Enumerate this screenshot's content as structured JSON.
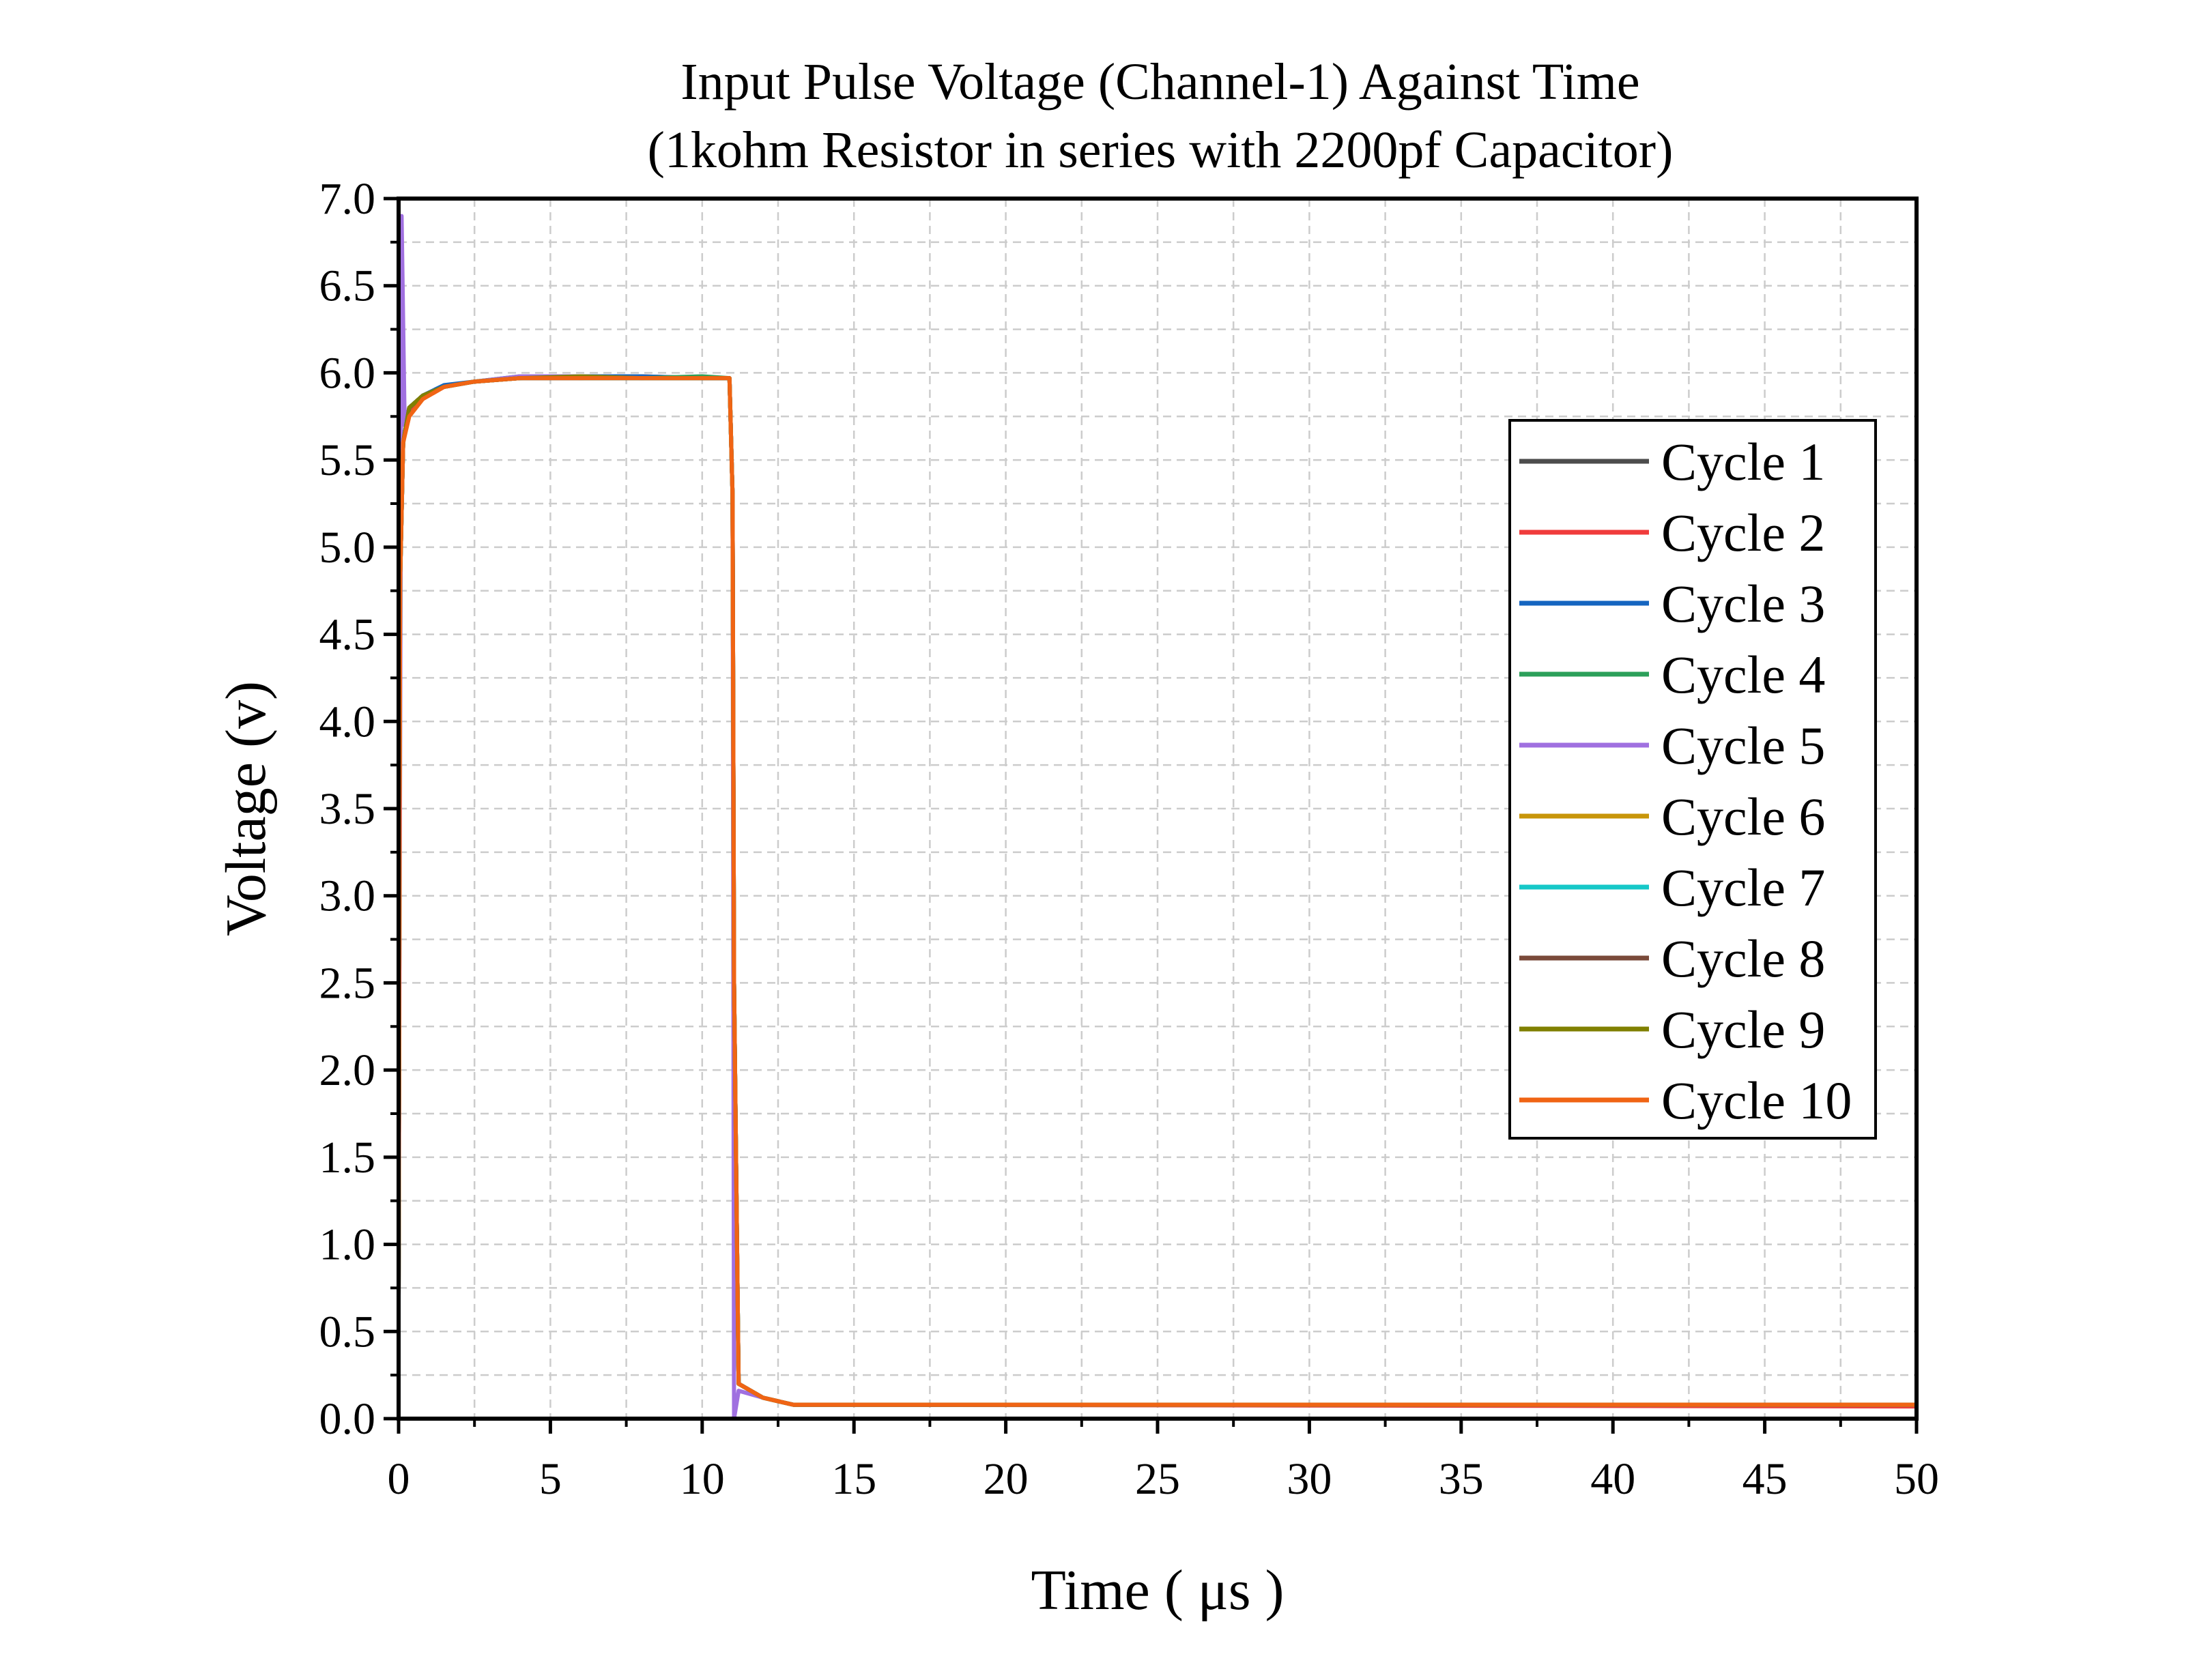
{
  "chart_data": {
    "type": "line",
    "title": "Input Pulse Voltage (Channel-1) Against Time",
    "subtitle": "(1kohm Resistor in series with 2200pf Capacitor)",
    "xlabel": "Time ( μs )",
    "ylabel": "Voltage (v)",
    "xlim": [
      0,
      50
    ],
    "ylim": [
      0,
      7
    ],
    "x_ticks": [
      "0",
      "5",
      "10",
      "15",
      "20",
      "25",
      "30",
      "35",
      "40",
      "45",
      "50"
    ],
    "y_ticks": [
      "0.0",
      "0.5",
      "1.0",
      "1.5",
      "2.0",
      "2.5",
      "3.0",
      "3.5",
      "4.0",
      "4.5",
      "5.0",
      "5.5",
      "6.0",
      "6.5",
      "7.0"
    ],
    "grid": true,
    "legend_position": "right",
    "series": [
      {
        "name": "Cycle 1",
        "color": "#4d4d4d",
        "x": [
          0,
          0.05,
          0.15,
          0.35,
          0.8,
          1.5,
          2.5,
          4,
          6,
          8,
          10,
          10.9,
          11.0,
          11.05,
          11.2,
          12,
          13,
          50
        ],
        "y": [
          0.7,
          4.8,
          5.6,
          5.8,
          5.87,
          5.92,
          5.95,
          5.97,
          5.97,
          5.97,
          5.97,
          5.97,
          5.3,
          2.5,
          0.2,
          0.12,
          0.08,
          0.08
        ]
      },
      {
        "name": "Cycle 2",
        "color": "#f03c3c",
        "x": [
          0,
          0.05,
          0.15,
          0.35,
          0.8,
          1.5,
          2.5,
          4,
          6,
          8,
          10,
          10.9,
          11.0,
          11.05,
          11.2,
          12,
          13,
          50
        ],
        "y": [
          0.7,
          4.8,
          5.6,
          5.78,
          5.85,
          5.92,
          5.95,
          5.97,
          5.97,
          5.98,
          5.97,
          5.97,
          5.3,
          2.5,
          0.2,
          0.12,
          0.08,
          0.07
        ]
      },
      {
        "name": "Cycle 3",
        "color": "#1565c0",
        "x": [
          0,
          0.05,
          0.15,
          0.35,
          0.8,
          1.5,
          2.5,
          4,
          6,
          8,
          10,
          10.9,
          11.0,
          11.05,
          11.2,
          12,
          13,
          50
        ],
        "y": [
          0.7,
          4.8,
          5.6,
          5.8,
          5.87,
          5.93,
          5.95,
          5.97,
          5.98,
          5.98,
          5.97,
          5.97,
          5.3,
          2.5,
          0.2,
          0.12,
          0.08,
          0.08
        ]
      },
      {
        "name": "Cycle 4",
        "color": "#2ca05a",
        "x": [
          0,
          0.05,
          0.15,
          0.35,
          0.8,
          1.5,
          2.5,
          4,
          6,
          8,
          10,
          10.9,
          11.0,
          11.05,
          11.2,
          12,
          13,
          50
        ],
        "y": [
          0.7,
          4.8,
          5.6,
          5.8,
          5.87,
          5.92,
          5.95,
          5.98,
          5.97,
          5.97,
          5.98,
          5.97,
          5.3,
          2.5,
          0.2,
          0.12,
          0.08,
          0.08
        ]
      },
      {
        "name": "Cycle 5",
        "color": "#a070e0",
        "x": [
          0,
          0.1,
          0.2,
          0.35,
          0.8,
          1.5,
          2.5,
          4,
          6,
          8,
          10,
          10.9,
          11.0,
          11.05,
          11.2,
          12,
          13,
          50
        ],
        "y": [
          0.7,
          6.9,
          5.7,
          5.8,
          5.87,
          5.92,
          5.95,
          5.98,
          5.98,
          5.97,
          5.97,
          5.97,
          5.3,
          0.0,
          0.16,
          0.12,
          0.08,
          0.08
        ]
      },
      {
        "name": "Cycle 6",
        "color": "#c8960a",
        "x": [
          0,
          0.05,
          0.15,
          0.35,
          0.8,
          1.5,
          2.5,
          4,
          6,
          8,
          10,
          10.9,
          11.0,
          11.05,
          11.2,
          12,
          13,
          50
        ],
        "y": [
          0.7,
          4.8,
          5.6,
          5.8,
          5.87,
          5.92,
          5.95,
          5.97,
          5.97,
          5.97,
          5.97,
          5.97,
          5.3,
          2.5,
          0.2,
          0.12,
          0.08,
          0.08
        ]
      },
      {
        "name": "Cycle 7",
        "color": "#16c8c8",
        "x": [
          0,
          0.05,
          0.15,
          0.35,
          0.8,
          1.5,
          2.5,
          4,
          6,
          8,
          10,
          10.9,
          11.0,
          11.05,
          11.2,
          12,
          13,
          50
        ],
        "y": [
          0.7,
          4.8,
          5.6,
          5.8,
          5.87,
          5.92,
          5.95,
          5.97,
          5.97,
          5.97,
          5.97,
          5.97,
          5.3,
          2.5,
          0.2,
          0.12,
          0.08,
          0.08
        ]
      },
      {
        "name": "Cycle 8",
        "color": "#7a4a3a",
        "x": [
          0,
          0.05,
          0.15,
          0.35,
          0.8,
          1.5,
          2.5,
          4,
          6,
          8,
          10,
          10.9,
          11.0,
          11.05,
          11.2,
          12,
          13,
          50
        ],
        "y": [
          0.7,
          4.8,
          5.6,
          5.8,
          5.87,
          5.92,
          5.95,
          5.97,
          5.97,
          5.97,
          5.97,
          5.97,
          5.3,
          2.5,
          0.2,
          0.12,
          0.08,
          0.08
        ]
      },
      {
        "name": "Cycle 9",
        "color": "#808000",
        "x": [
          0,
          0.05,
          0.15,
          0.35,
          0.8,
          1.5,
          2.5,
          4,
          6,
          8,
          10,
          10.9,
          11.0,
          11.05,
          11.2,
          12,
          13,
          50
        ],
        "y": [
          0.7,
          4.8,
          5.6,
          5.8,
          5.87,
          5.92,
          5.95,
          5.97,
          5.98,
          5.97,
          5.97,
          5.97,
          5.3,
          2.5,
          0.2,
          0.12,
          0.08,
          0.08
        ]
      },
      {
        "name": "Cycle 10",
        "color": "#f06414",
        "x": [
          0,
          0.05,
          0.15,
          0.35,
          0.8,
          1.5,
          2.5,
          4,
          6,
          8,
          10,
          10.9,
          11.0,
          11.05,
          11.2,
          12,
          13,
          50
        ],
        "y": [
          0.7,
          4.8,
          5.6,
          5.75,
          5.85,
          5.92,
          5.95,
          5.97,
          5.97,
          5.97,
          5.97,
          5.97,
          5.3,
          2.5,
          0.2,
          0.12,
          0.08,
          0.08
        ]
      }
    ]
  }
}
